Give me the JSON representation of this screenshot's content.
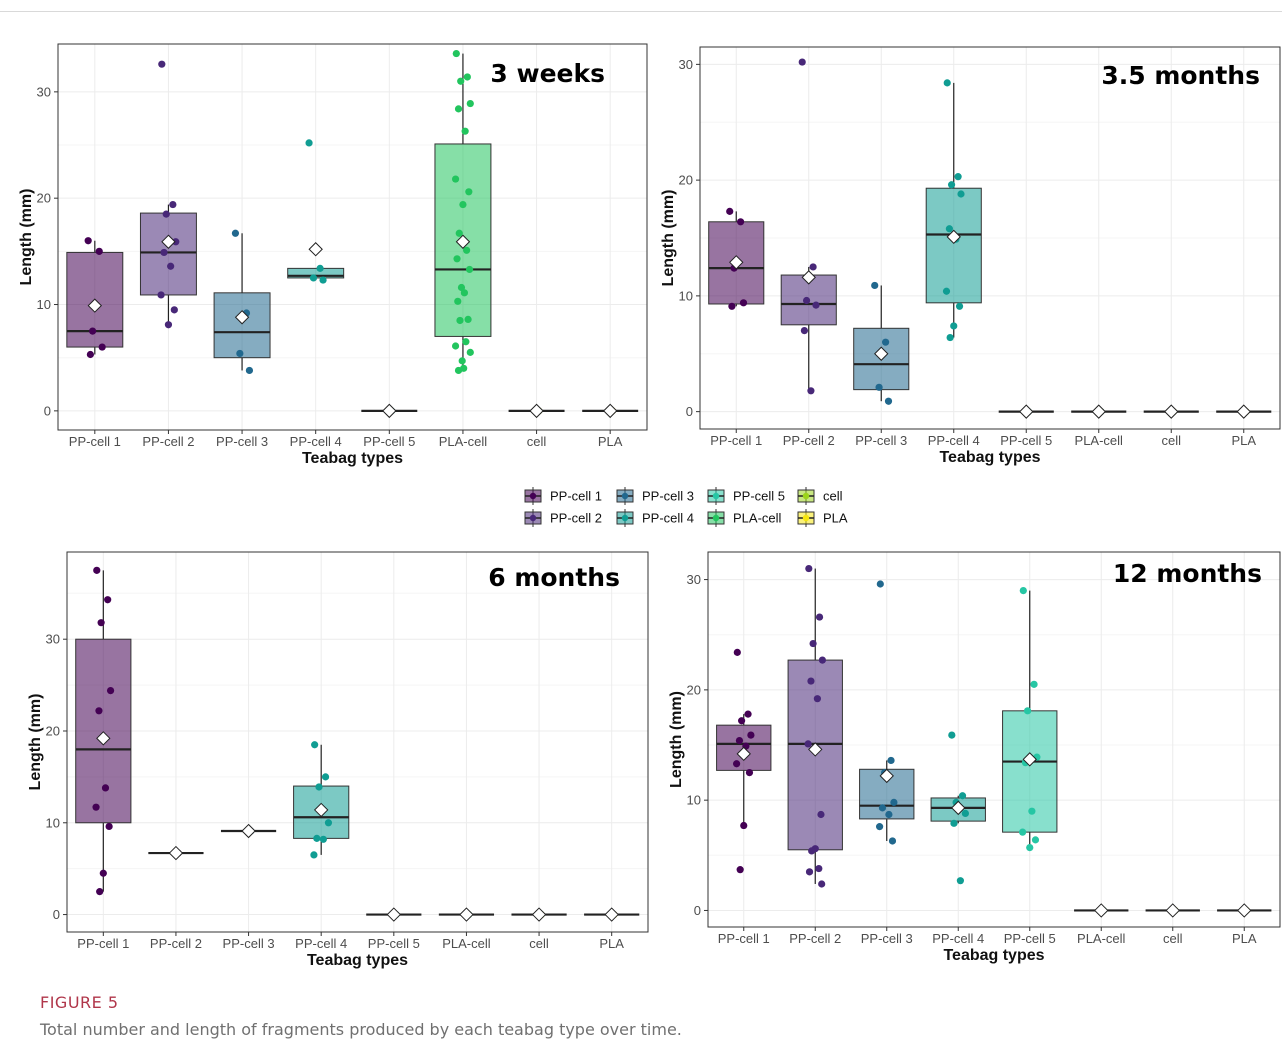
{
  "caption": {
    "label": "FIGURE 5",
    "text": "Total number and length of fragments produced by each teabag type over time."
  },
  "colors": {
    "PP-cell 1": "#440154",
    "PP-cell 2": "#482878",
    "PP-cell 3": "#21688e",
    "PP-cell 4": "#109d93",
    "PP-cell 5": "#26c6a4",
    "PLA-cell": "#22c55e",
    "cell": "#9bd41a",
    "PLA": "#f5e50e"
  },
  "legend": {
    "items": [
      "PP-cell 1",
      "PP-cell 2",
      "PP-cell 3",
      "PP-cell 4",
      "PP-cell 5",
      "PLA-cell",
      "cell",
      "PLA"
    ]
  },
  "chart_data": [
    {
      "type": "box",
      "title": "3 weeks",
      "xlabel": "Teabag types",
      "ylabel": "Length (mm)",
      "ylim": [
        -1.8,
        34.5
      ],
      "yticks": [
        0,
        10,
        20,
        30
      ],
      "grid": true,
      "categories": [
        "PP-cell 1",
        "PP-cell 2",
        "PP-cell 3",
        "PP-cell 4",
        "PP-cell 5",
        "PLA-cell",
        "cell",
        "PLA"
      ],
      "boxes": [
        {
          "q1": 6.0,
          "median": 7.5,
          "q3": 14.9,
          "whisker_low": 5.3,
          "whisker_high": 16.0,
          "mean": 9.9,
          "points": [
            16.0,
            15.0,
            7.5,
            6.0,
            5.3
          ]
        },
        {
          "q1": 10.9,
          "median": 14.9,
          "q3": 18.6,
          "whisker_low": 8.1,
          "whisker_high": 19.4,
          "mean": 15.9,
          "points": [
            32.6,
            19.4,
            18.5,
            15.9,
            14.9,
            13.6,
            10.9,
            9.5,
            8.1
          ]
        },
        {
          "q1": 5.0,
          "median": 7.4,
          "q3": 11.1,
          "whisker_low": 3.8,
          "whisker_high": 16.7,
          "mean": 8.8,
          "points": [
            16.7,
            9.2,
            5.4,
            3.8
          ]
        },
        {
          "q1": 12.5,
          "median": 12.7,
          "q3": 13.4,
          "whisker_low": 12.3,
          "whisker_high": 13.4,
          "mean": 15.2,
          "points": [
            25.2,
            13.4,
            12.5,
            12.3
          ]
        },
        {
          "q1": 0,
          "median": 0,
          "q3": 0,
          "whisker_low": 0,
          "whisker_high": 0,
          "mean": 0,
          "points": [
            0
          ]
        },
        {
          "q1": 7.0,
          "median": 13.3,
          "q3": 25.1,
          "whisker_low": 3.8,
          "whisker_high": 33.6,
          "mean": 15.9,
          "points": [
            33.6,
            31.4,
            31.0,
            28.9,
            28.4,
            26.3,
            21.8,
            20.6,
            19.4,
            16.7,
            15.1,
            14.3,
            13.3,
            11.6,
            11.1,
            10.3,
            8.6,
            8.5,
            6.5,
            6.1,
            5.5,
            4.7,
            4.0,
            3.8
          ]
        },
        {
          "q1": 0,
          "median": 0,
          "q3": 0,
          "whisker_low": 0,
          "whisker_high": 0,
          "mean": 0,
          "points": [
            0
          ]
        },
        {
          "q1": 0,
          "median": 0,
          "q3": 0,
          "whisker_low": 0,
          "whisker_high": 0,
          "mean": 0,
          "points": [
            0
          ]
        }
      ]
    },
    {
      "type": "box",
      "title": "3.5 months",
      "xlabel": "Teabag types",
      "ylabel": "Length (mm)",
      "ylim": [
        -1.5,
        31.5
      ],
      "yticks": [
        0,
        10,
        20,
        30
      ],
      "grid": true,
      "categories": [
        "PP-cell 1",
        "PP-cell 2",
        "PP-cell 3",
        "PP-cell 4",
        "PP-cell 5",
        "PLA-cell",
        "cell",
        "PLA"
      ],
      "boxes": [
        {
          "q1": 9.3,
          "median": 12.4,
          "q3": 16.4,
          "whisker_low": 9.1,
          "whisker_high": 17.3,
          "mean": 12.9,
          "points": [
            17.3,
            16.4,
            12.4,
            9.4,
            9.1
          ]
        },
        {
          "q1": 7.5,
          "median": 9.3,
          "q3": 11.8,
          "whisker_low": 1.8,
          "whisker_high": 12.5,
          "mean": 11.6,
          "points": [
            30.2,
            12.5,
            9.6,
            9.2,
            7.0,
            1.8
          ]
        },
        {
          "q1": 1.9,
          "median": 4.1,
          "q3": 7.2,
          "whisker_low": 0.9,
          "whisker_high": 10.9,
          "mean": 5.0,
          "points": [
            10.9,
            6.0,
            2.1,
            0.9
          ]
        },
        {
          "q1": 9.4,
          "median": 15.3,
          "q3": 19.3,
          "whisker_low": 6.4,
          "whisker_high": 28.4,
          "mean": 15.1,
          "points": [
            28.4,
            20.3,
            19.6,
            18.8,
            15.8,
            14.9,
            10.4,
            9.1,
            7.4,
            6.4
          ]
        },
        {
          "q1": 0,
          "median": 0,
          "q3": 0,
          "whisker_low": 0,
          "whisker_high": 0,
          "mean": 0,
          "points": [
            0
          ]
        },
        {
          "q1": 0,
          "median": 0,
          "q3": 0,
          "whisker_low": 0,
          "whisker_high": 0,
          "mean": 0,
          "points": [
            0
          ]
        },
        {
          "q1": 0,
          "median": 0,
          "q3": 0,
          "whisker_low": 0,
          "whisker_high": 0,
          "mean": 0,
          "points": [
            0
          ]
        },
        {
          "q1": 0,
          "median": 0,
          "q3": 0,
          "whisker_low": 0,
          "whisker_high": 0,
          "mean": 0,
          "points": [
            0
          ]
        }
      ]
    },
    {
      "type": "box",
      "title": "6 months",
      "xlabel": "Teabag types",
      "ylabel": "Length (mm)",
      "ylim": [
        -1.9,
        39.5
      ],
      "yticks": [
        0,
        10,
        20,
        30
      ],
      "grid": true,
      "categories": [
        "PP-cell 1",
        "PP-cell 2",
        "PP-cell 3",
        "PP-cell 4",
        "PP-cell 5",
        "PLA-cell",
        "cell",
        "PLA"
      ],
      "boxes": [
        {
          "q1": 10.0,
          "median": 18.0,
          "q3": 30.0,
          "whisker_low": 2.5,
          "whisker_high": 37.5,
          "mean": 19.2,
          "points": [
            37.5,
            34.3,
            31.8,
            24.4,
            22.2,
            13.8,
            11.7,
            9.6,
            4.5,
            2.5
          ]
        },
        {
          "q1": 6.7,
          "median": 6.7,
          "q3": 6.7,
          "whisker_low": 6.7,
          "whisker_high": 6.7,
          "mean": 6.7,
          "points": [
            6.7
          ]
        },
        {
          "q1": 9.1,
          "median": 9.1,
          "q3": 9.1,
          "whisker_low": 9.1,
          "whisker_high": 9.1,
          "mean": 9.1,
          "points": [
            9.1
          ]
        },
        {
          "q1": 8.3,
          "median": 10.6,
          "q3": 14.0,
          "whisker_low": 6.5,
          "whisker_high": 18.5,
          "mean": 11.4,
          "points": [
            18.5,
            15.0,
            13.9,
            10.0,
            8.3,
            8.2,
            6.5
          ]
        },
        {
          "q1": 0,
          "median": 0,
          "q3": 0,
          "whisker_low": 0,
          "whisker_high": 0,
          "mean": 0,
          "points": [
            0
          ]
        },
        {
          "q1": 0,
          "median": 0,
          "q3": 0,
          "whisker_low": 0,
          "whisker_high": 0,
          "mean": 0,
          "points": [
            0
          ]
        },
        {
          "q1": 0,
          "median": 0,
          "q3": 0,
          "whisker_low": 0,
          "whisker_high": 0,
          "mean": 0,
          "points": [
            0
          ]
        },
        {
          "q1": 0,
          "median": 0,
          "q3": 0,
          "whisker_low": 0,
          "whisker_high": 0,
          "mean": 0,
          "points": [
            0
          ]
        }
      ]
    },
    {
      "type": "box",
      "title": "12 months",
      "xlabel": "Teabag types",
      "ylabel": "Length (mm)",
      "ylim": [
        -1.5,
        32.5
      ],
      "yticks": [
        0,
        10,
        20,
        30
      ],
      "grid": true,
      "categories": [
        "PP-cell 1",
        "PP-cell 2",
        "PP-cell 3",
        "PP-cell 4",
        "PP-cell 5",
        "PLA-cell",
        "cell",
        "PLA"
      ],
      "boxes": [
        {
          "q1": 12.7,
          "median": 15.1,
          "q3": 16.8,
          "whisker_low": 7.7,
          "whisker_high": 17.8,
          "mean": 14.2,
          "points": [
            23.4,
            17.8,
            17.2,
            15.9,
            15.4,
            14.9,
            13.3,
            12.5,
            7.7,
            3.7
          ]
        },
        {
          "q1": 5.5,
          "median": 15.1,
          "q3": 22.7,
          "whisker_low": 2.4,
          "whisker_high": 31.0,
          "mean": 14.6,
          "points": [
            31.0,
            26.6,
            24.2,
            22.7,
            20.8,
            19.2,
            15.1,
            8.7,
            5.6,
            5.4,
            3.8,
            3.5,
            2.4
          ]
        },
        {
          "q1": 8.3,
          "median": 9.5,
          "q3": 12.8,
          "whisker_low": 6.3,
          "whisker_high": 13.6,
          "mean": 12.2,
          "points": [
            29.6,
            13.6,
            12.5,
            9.8,
            9.3,
            8.7,
            7.6,
            6.3
          ]
        },
        {
          "q1": 8.1,
          "median": 9.3,
          "q3": 10.2,
          "whisker_low": 7.9,
          "whisker_high": 10.4,
          "mean": 9.3,
          "points": [
            15.9,
            10.4,
            9.8,
            8.8,
            7.9,
            2.7
          ]
        },
        {
          "q1": 7.1,
          "median": 13.5,
          "q3": 18.1,
          "whisker_low": 5.7,
          "whisker_high": 29.0,
          "mean": 13.7,
          "points": [
            29.0,
            20.5,
            18.1,
            13.9,
            13.4,
            9.0,
            7.1,
            6.4,
            5.7
          ]
        },
        {
          "q1": 0,
          "median": 0,
          "q3": 0,
          "whisker_low": 0,
          "whisker_high": 0,
          "mean": 0,
          "points": [
            0
          ]
        },
        {
          "q1": 0,
          "median": 0,
          "q3": 0,
          "whisker_low": 0,
          "whisker_high": 0,
          "mean": 0,
          "points": [
            0
          ]
        },
        {
          "q1": 0,
          "median": 0,
          "q3": 0,
          "whisker_low": 0,
          "whisker_high": 0,
          "mean": 0,
          "points": [
            0
          ]
        }
      ]
    }
  ]
}
